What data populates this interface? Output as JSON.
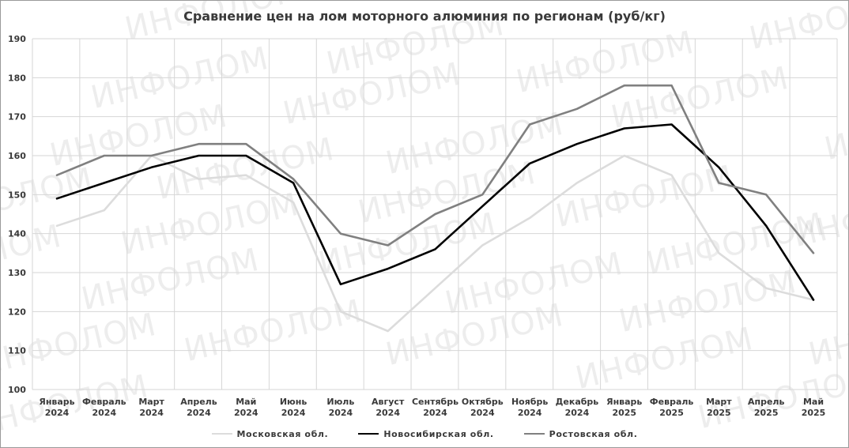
{
  "watermark_text": "ИНФОЛОМ",
  "chart_data": {
    "type": "line",
    "title": "Сравнение цен на лом моторного алюминия по регионам (руб/кг)",
    "xlabel": "",
    "ylabel": "",
    "ylim": [
      100,
      190
    ],
    "yticks": [
      100,
      110,
      120,
      130,
      140,
      150,
      160,
      170,
      180,
      190
    ],
    "grid": true,
    "legend_position": "bottom",
    "categories": [
      [
        "Январь",
        "2024"
      ],
      [
        "Февраль",
        "2024"
      ],
      [
        "Март",
        "2024"
      ],
      [
        "Апрель",
        "2024"
      ],
      [
        "Май",
        "2024"
      ],
      [
        "Июнь",
        "2024"
      ],
      [
        "Июль",
        "2024"
      ],
      [
        "Август",
        "2024"
      ],
      [
        "Сентябрь",
        "2024"
      ],
      [
        "Октябрь",
        "2024"
      ],
      [
        "Ноябрь",
        "2024"
      ],
      [
        "Декабрь",
        "2024"
      ],
      [
        "Январь",
        "2025"
      ],
      [
        "Февраль",
        "2025"
      ],
      [
        "Март",
        "2025"
      ],
      [
        "Апрель",
        "2025"
      ],
      [
        "Май",
        "2025"
      ]
    ],
    "series": [
      {
        "name": "Московская обл.",
        "color": "#dcdcdc",
        "values": [
          142,
          146,
          160,
          154,
          155,
          148,
          120,
          115,
          126,
          137,
          144,
          153,
          160,
          155,
          135,
          126,
          123
        ]
      },
      {
        "name": "Новосибирская обл.",
        "color": "#000000",
        "values": [
          149,
          153,
          157,
          160,
          160,
          153,
          127,
          131,
          136,
          147,
          158,
          163,
          167,
          168,
          157,
          142,
          123
        ]
      },
      {
        "name": "Ростовская обл.",
        "color": "#808080",
        "values": [
          155,
          160,
          160,
          163,
          163,
          154,
          140,
          137,
          145,
          150,
          168,
          172,
          178,
          178,
          153,
          150,
          135
        ]
      }
    ]
  }
}
